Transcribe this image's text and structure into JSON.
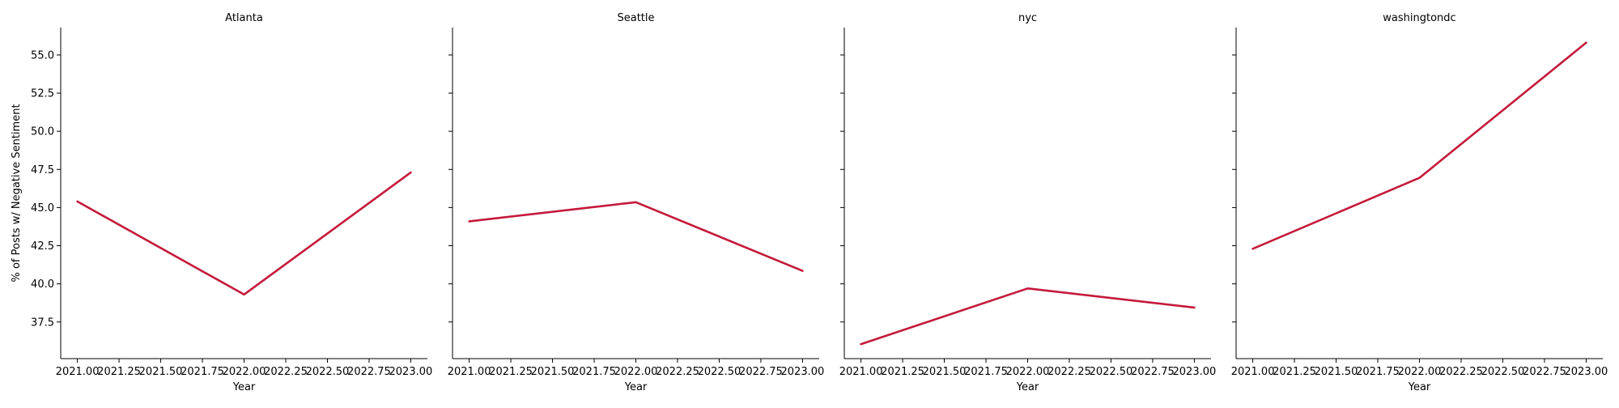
{
  "chart_data": {
    "type": "line",
    "ylabel": "% of Posts w/ Negative Sentiment",
    "xlabel": "Year",
    "xlim": [
      2020.9,
      2023.1
    ],
    "ylim": [
      35.1,
      56.8
    ],
    "x_ticks": [
      2021.0,
      2021.25,
      2021.5,
      2021.75,
      2022.0,
      2022.25,
      2022.5,
      2022.75,
      2023.0
    ],
    "x_tick_labels": [
      "2021.00",
      "2021.25",
      "2021.50",
      "2021.75",
      "2022.00",
      "2022.25",
      "2022.50",
      "2022.75",
      "2023.00"
    ],
    "y_ticks": [
      37.5,
      40.0,
      42.5,
      45.0,
      47.5,
      50.0,
      52.5,
      55.0
    ],
    "y_tick_labels": [
      "37.5",
      "40.0",
      "42.5",
      "45.0",
      "47.5",
      "50.0",
      "52.5",
      "55.0"
    ],
    "line_color": "#c41a3b",
    "grid": false,
    "panels": [
      {
        "title": "Atlanta",
        "x": [
          2021,
          2022,
          2023
        ],
        "y": [
          45.4,
          39.3,
          47.3
        ]
      },
      {
        "title": "Seattle",
        "x": [
          2021,
          2022,
          2023
        ],
        "y": [
          44.1,
          45.35,
          40.85
        ]
      },
      {
        "title": "nyc",
        "x": [
          2021,
          2022,
          2023
        ],
        "y": [
          36.05,
          39.7,
          38.45
        ]
      },
      {
        "title": "washingtondc",
        "x": [
          2021,
          2022,
          2023
        ],
        "y": [
          42.3,
          46.95,
          55.8
        ]
      }
    ]
  }
}
